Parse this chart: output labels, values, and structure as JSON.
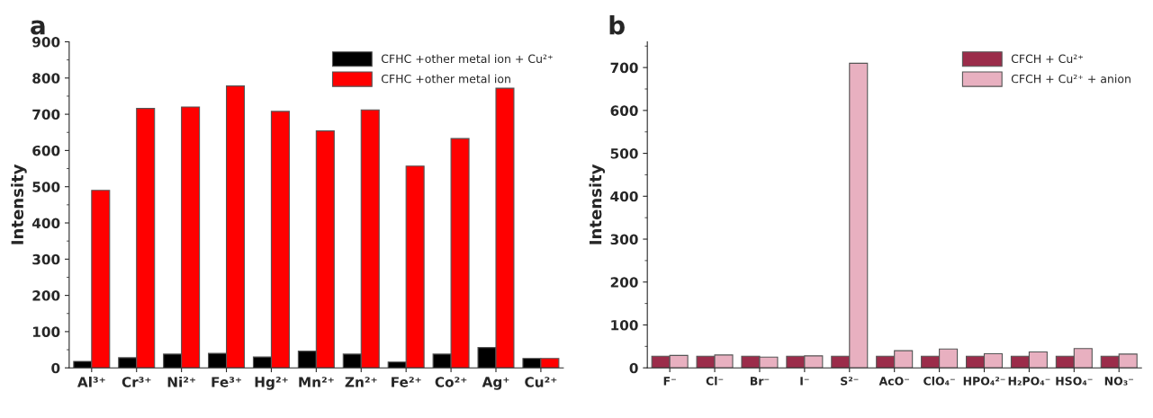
{
  "chart_data": [
    {
      "type": "bar",
      "title": "a",
      "ylabel": "Intensity",
      "categories": [
        "Al³⁺",
        "Cr³⁺",
        "Ni²⁺",
        "Fe³⁺",
        "Hg²⁺",
        "Mn²⁺",
        "Zn²⁺",
        "Fe²⁺",
        "Co²⁺",
        "Ag⁺",
        "Cu²⁺"
      ],
      "series": [
        {
          "name": "CFHC +other metal ion + Cu²⁺",
          "color": "#000000",
          "values": [
            18,
            28,
            38,
            40,
            30,
            46,
            38,
            16,
            38,
            56,
            26
          ]
        },
        {
          "name": "CFHC +other metal ion",
          "color": "#ff0000",
          "values": [
            490,
            716,
            720,
            778,
            708,
            654,
            712,
            557,
            633,
            772,
            26
          ]
        }
      ],
      "ylim": [
        0,
        900
      ],
      "yticks": [
        0,
        100,
        200,
        300,
        400,
        500,
        600,
        700,
        800,
        900
      ],
      "legend": "top right"
    },
    {
      "type": "bar",
      "title": "b",
      "ylabel": "Intensity",
      "categories": [
        "F⁻",
        "Cl⁻",
        "Br⁻",
        "I⁻",
        "S²⁻",
        "AcO⁻",
        "ClO₄⁻",
        "HPO₄²⁻",
        "H₂PO₄⁻",
        "HSO₄⁻",
        "NO₃⁻"
      ],
      "series": [
        {
          "name": "CFCH + Cu²⁺",
          "color": "#9b2c4a",
          "values": [
            27,
            27,
            27,
            27,
            27,
            27,
            27,
            27,
            27,
            27,
            27
          ]
        },
        {
          "name": "CFCH + Cu²⁺ + anion",
          "color": "#e8b0c0",
          "values": [
            29,
            30,
            25,
            28,
            710,
            40,
            44,
            33,
            37,
            45,
            32
          ]
        }
      ],
      "ylim": [
        0,
        760
      ],
      "yticks": [
        0,
        100,
        200,
        300,
        400,
        500,
        600,
        700
      ],
      "legend": "top right"
    }
  ]
}
